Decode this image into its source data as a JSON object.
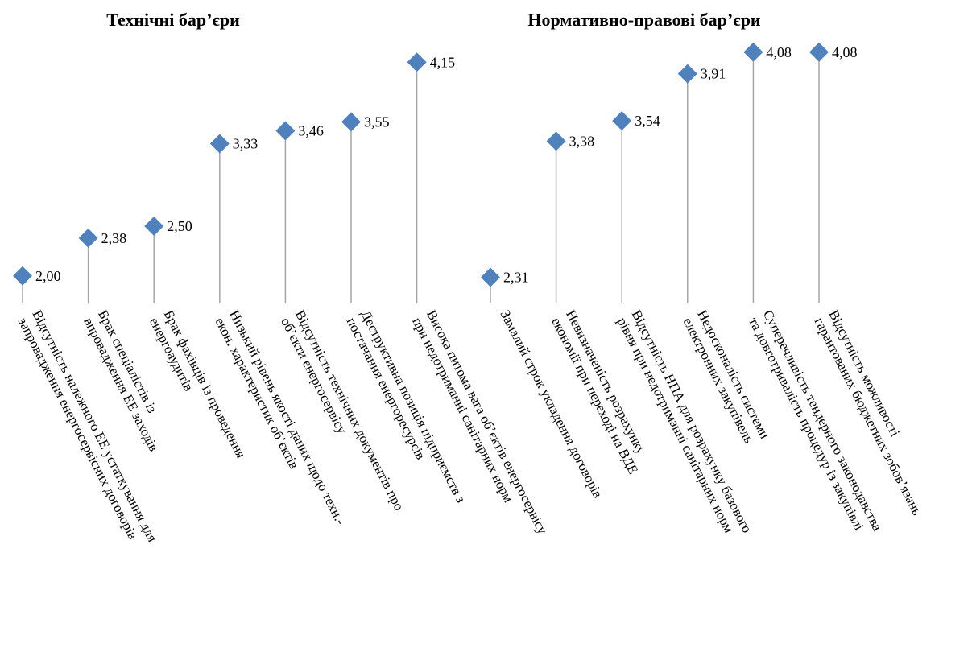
{
  "chart_data": [
    {
      "type": "dot",
      "title": "Технічні бар’єри",
      "color": "#4f81bd",
      "categories": [
        [
          "Відсутність належного ЕЕ устаткування для",
          "запровадження енергосервісних договорів"
        ],
        [
          "Брак спеціалістів із",
          "впровадження ЕЕ заходів"
        ],
        [
          "Брак фахівців із проведення",
          "енергоаудитів"
        ],
        [
          "Низький рівень якості даних щодо  техн.-",
          "екон. характеристик об’єктів"
        ],
        [
          "Відсутність  технічних документів про",
          "об’єкти енергосервісу"
        ],
        [
          "Деструктивна позиція підприємств з",
          "постачання енергоресурсів"
        ],
        [
          "Висока питома вага об’єктів енергосервісу",
          "при недотриманні санітарних норм"
        ]
      ],
      "values": [
        2.0,
        2.38,
        2.5,
        3.33,
        3.46,
        3.55,
        4.15
      ],
      "value_labels": [
        "2,00",
        "2,38",
        "2,50",
        "3,33",
        "3,46",
        "3,55",
        "4,15"
      ],
      "ylim": [
        1.82,
        4.29
      ]
    },
    {
      "type": "dot",
      "title": "Нормативно-правові бар’єри",
      "color": "#4f81bd",
      "categories": [
        [
          "Замалий строк укладення договорів"
        ],
        [
          "Невизначеність розрахунку",
          "економії при переході на ВДЕ"
        ],
        [
          "Відсутність НПА для розрахунку базового",
          "рівня при недотриманні санітарних норм"
        ],
        [
          "Недосконалість системи",
          "електронних закупівель"
        ],
        [
          "Суперечливість тендерного законодавства",
          "та довготривалість процедур  із закупівлі"
        ],
        [
          "Відсутність можливості",
          "гарантованих бюджетних зобов’язань"
        ]
      ],
      "values": [
        2.31,
        3.38,
        3.54,
        3.91,
        4.08,
        4.08
      ],
      "value_labels": [
        "2,31",
        "3,38",
        "3,54",
        "3,91",
        "4,08",
        "4,08"
      ],
      "ylim": [
        2.18,
        4.11
      ]
    }
  ]
}
